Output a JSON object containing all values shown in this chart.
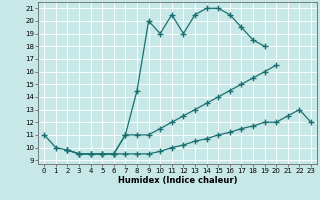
{
  "title": "",
  "xlabel": "Humidex (Indice chaleur)",
  "bg_color": "#c8e8e8",
  "line_color": "#1a7070",
  "xlim": [
    -0.5,
    23.5
  ],
  "ylim": [
    8.7,
    21.5
  ],
  "xticks": [
    0,
    1,
    2,
    3,
    4,
    5,
    6,
    7,
    8,
    9,
    10,
    11,
    12,
    13,
    14,
    15,
    16,
    17,
    18,
    19,
    20,
    21,
    22,
    23
  ],
  "yticks": [
    9,
    10,
    11,
    12,
    13,
    14,
    15,
    16,
    17,
    18,
    19,
    20,
    21
  ],
  "line1_x": [
    0,
    1,
    2,
    3,
    4,
    5,
    6,
    7,
    8,
    9,
    10,
    11,
    12,
    13,
    14,
    15,
    16,
    17,
    18,
    19
  ],
  "line1_y": [
    11,
    10,
    9.8,
    9.5,
    9.5,
    9.5,
    9.5,
    11,
    14.5,
    20,
    19,
    20.5,
    19,
    20.5,
    21,
    21,
    20.5,
    19.5,
    18.5,
    18
  ],
  "line2_x": [
    2,
    3,
    4,
    5,
    6,
    7,
    8,
    9,
    10,
    11,
    12,
    13,
    14,
    15,
    16,
    17,
    18,
    19,
    20
  ],
  "line2_y": [
    9.8,
    9.5,
    9.5,
    9.5,
    9.5,
    11,
    11,
    11,
    11.5,
    12,
    12.5,
    13,
    13.5,
    14,
    14.5,
    15,
    15.5,
    16,
    16.5
  ],
  "line3_x": [
    2,
    3,
    4,
    5,
    6,
    7,
    8,
    9,
    10,
    11,
    12,
    13,
    14,
    15,
    16,
    17,
    18,
    19,
    20,
    21,
    22,
    23
  ],
  "line3_y": [
    9.8,
    9.5,
    9.5,
    9.5,
    9.5,
    9.5,
    9.5,
    9.5,
    9.7,
    10,
    10.2,
    10.5,
    10.7,
    11,
    11.2,
    11.5,
    11.7,
    12,
    12,
    12.5,
    13,
    12
  ]
}
